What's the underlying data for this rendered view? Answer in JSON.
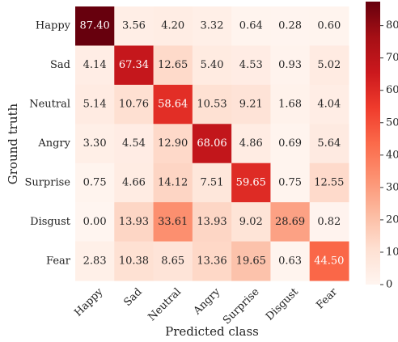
{
  "chart_data": {
    "type": "heatmap",
    "x_label": "Predicted class",
    "y_label": "Ground truth",
    "x_categories": [
      "Happy",
      "Sad",
      "Neutral",
      "Angry",
      "Surprise",
      "Disgust",
      "Fear"
    ],
    "y_categories": [
      "Happy",
      "Sad",
      "Neutral",
      "Angry",
      "Surprise",
      "Disgust",
      "Fear"
    ],
    "values": [
      [
        87.4,
        3.56,
        4.2,
        3.32,
        0.64,
        0.28,
        0.6
      ],
      [
        4.14,
        67.34,
        12.65,
        5.4,
        4.53,
        0.93,
        5.02
      ],
      [
        5.14,
        10.76,
        58.64,
        10.53,
        9.21,
        1.68,
        4.04
      ],
      [
        3.3,
        4.54,
        12.9,
        68.06,
        4.86,
        0.69,
        5.64
      ],
      [
        0.75,
        4.66,
        14.12,
        7.51,
        59.65,
        0.75,
        12.55
      ],
      [
        0,
        13.93,
        33.61,
        13.93,
        9.02,
        28.69,
        0.82
      ],
      [
        2.83,
        10.38,
        8.65,
        13.36,
        19.65,
        0.63,
        44.5
      ]
    ],
    "value_labels": [
      [
        "87.40",
        "3.56",
        "4.20",
        "3.32",
        "0.64",
        "0.28",
        "0.60"
      ],
      [
        "4.14",
        "67.34",
        "12.65",
        "5.40",
        "4.53",
        "0.93",
        "5.02"
      ],
      [
        "5.14",
        "10.76",
        "58.64",
        "10.53",
        "9.21",
        "1.68",
        "4.04"
      ],
      [
        "3.30",
        "4.54",
        "12.90",
        "68.06",
        "4.86",
        "0.69",
        "5.64"
      ],
      [
        "0.75",
        "4.66",
        "14.12",
        "7.51",
        "59.65",
        "0.75",
        "12.55"
      ],
      [
        "0.00",
        "13.93",
        "33.61",
        "13.93",
        "9.02",
        "28.69",
        "0.82"
      ],
      [
        "2.83",
        "10.38",
        "8.65",
        "13.36",
        "19.65",
        "0.63",
        "44.50"
      ]
    ],
    "zlim": [
      0,
      87.4
    ],
    "zticks": [
      0,
      10,
      20,
      30,
      40,
      50,
      60,
      70,
      80
    ],
    "colorscale": [
      "#fff5f0",
      "#fee0d2",
      "#fcbba1",
      "#fc9272",
      "#fb6a4a",
      "#ef3b2c",
      "#cb181d",
      "#a50f15",
      "#67000d"
    ]
  }
}
